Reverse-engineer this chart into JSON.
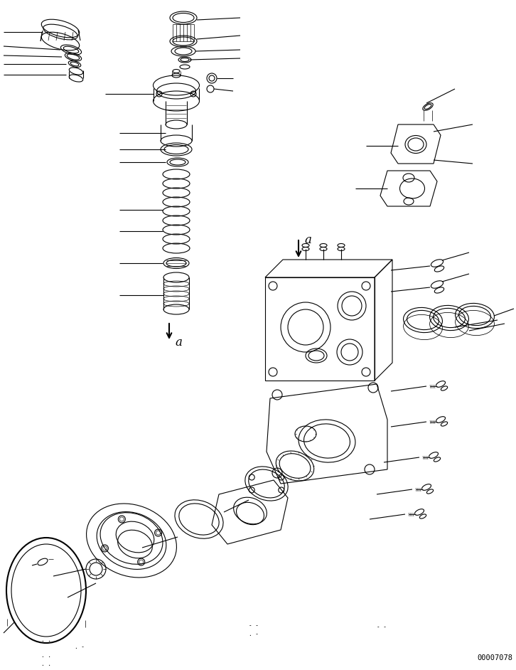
{
  "background_color": "#ffffff",
  "doc_number": "00007078",
  "fig_width": 7.26,
  "fig_height": 9.42,
  "dpi": 100,
  "line_color": "#000000",
  "line_width": 0.8
}
